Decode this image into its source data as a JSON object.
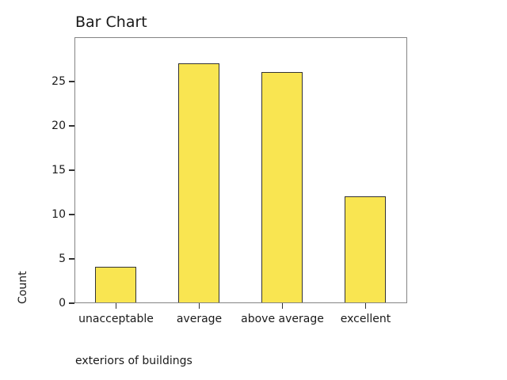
{
  "chart_data": {
    "type": "bar",
    "title": "Bar Chart",
    "categories": [
      "unacceptable",
      "average",
      "above average",
      "excellent"
    ],
    "values": [
      4,
      27,
      26,
      12
    ],
    "xlabel": "exteriors of buildings",
    "ylabel": "Count",
    "ylim": [
      0,
      30
    ],
    "yticks": [
      0,
      5,
      10,
      15,
      20,
      25
    ],
    "legend_position": "none",
    "grid": "off",
    "colors": {
      "bar_fill": "#f9e551",
      "bar_border": "#333333",
      "frame": "#848484",
      "text": "#1a1a1a",
      "background": "#ffffff"
    }
  }
}
